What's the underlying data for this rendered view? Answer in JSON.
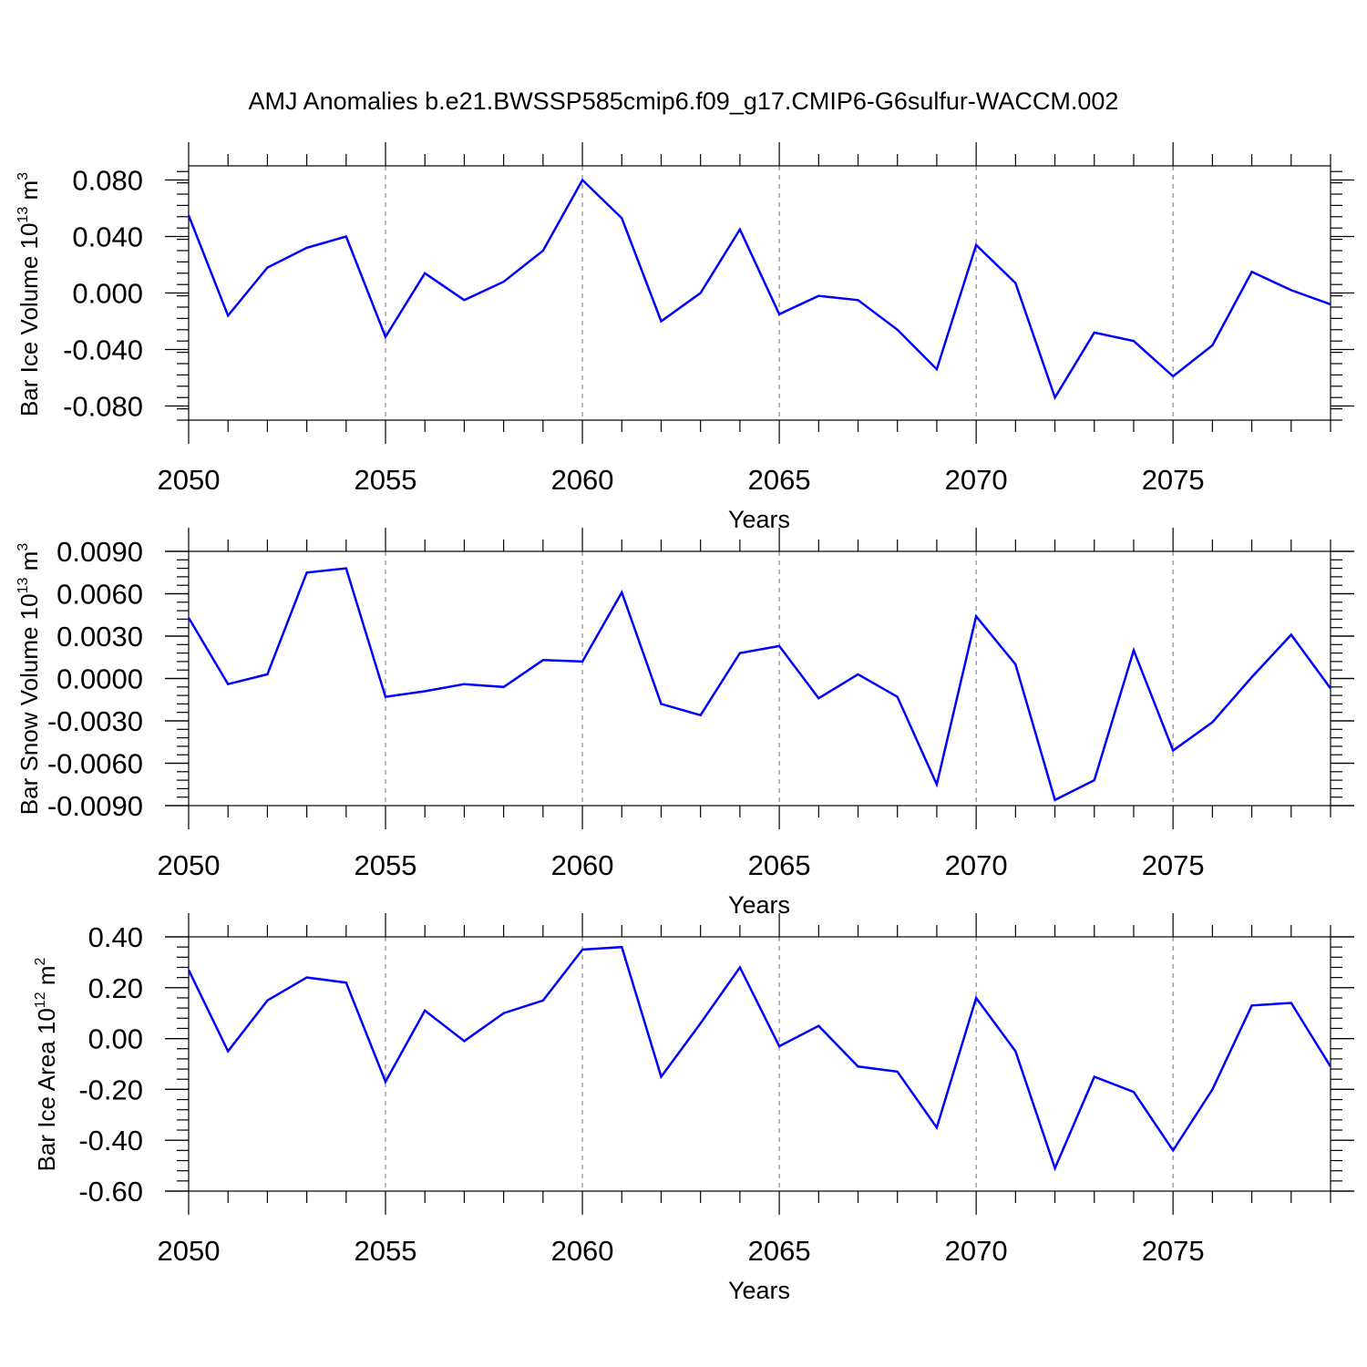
{
  "title": "AMJ Anomalies b.e21.BWSSP585cmip6.f09_g17.CMIP6-G6sulfur-WACCM.002",
  "chart_data": [
    {
      "type": "line",
      "ylabel": "Bar Ice Volume 10",
      "ylabel_sup": "13",
      "ylabel_unit": "m",
      "ylabel_unit_sup": "3",
      "xlabel": "Years",
      "xlim": [
        2050,
        2079
      ],
      "ylim": [
        -0.09,
        0.09
      ],
      "yticks": [
        -0.08,
        -0.04,
        0.0,
        0.04,
        0.08
      ],
      "ytick_labels": [
        "-0.080",
        "-0.040",
        "0.000",
        "0.040",
        "0.080"
      ],
      "xticks": [
        2050,
        2055,
        2060,
        2065,
        2070,
        2075
      ],
      "xtick_labels": [
        "2050",
        "2055",
        "2060",
        "2065",
        "2070",
        "2075"
      ],
      "grid": "vertical dashed at major x ticks",
      "line_color": "#0000ff",
      "x": [
        2050,
        2051,
        2052,
        2053,
        2054,
        2055,
        2056,
        2057,
        2058,
        2059,
        2060,
        2061,
        2062,
        2063,
        2064,
        2065,
        2066,
        2067,
        2068,
        2069,
        2070,
        2071,
        2072,
        2073,
        2074,
        2075,
        2076,
        2077,
        2078,
        2079
      ],
      "values": [
        0.055,
        -0.016,
        0.018,
        0.032,
        0.04,
        -0.031,
        0.014,
        -0.005,
        0.008,
        0.03,
        0.08,
        0.053,
        -0.02,
        0.0,
        0.045,
        -0.015,
        -0.002,
        -0.005,
        -0.026,
        -0.054,
        0.034,
        0.007,
        -0.074,
        -0.028,
        -0.034,
        -0.059,
        -0.037,
        0.015,
        0.002,
        -0.008
      ]
    },
    {
      "type": "line",
      "ylabel": "Bar Snow Volume 10",
      "ylabel_sup": "13",
      "ylabel_unit": "m",
      "ylabel_unit_sup": "3",
      "xlabel": "Years",
      "xlim": [
        2050,
        2079
      ],
      "ylim": [
        -0.009,
        0.009
      ],
      "yticks": [
        -0.009,
        -0.006,
        -0.003,
        0.0,
        0.003,
        0.006,
        0.009
      ],
      "ytick_labels": [
        "-0.0090",
        "-0.0060",
        "-0.0030",
        "0.0000",
        "0.0030",
        "0.0060",
        "0.0090"
      ],
      "xticks": [
        2050,
        2055,
        2060,
        2065,
        2070,
        2075
      ],
      "xtick_labels": [
        "2050",
        "2055",
        "2060",
        "2065",
        "2070",
        "2075"
      ],
      "grid": "vertical dashed at major x ticks",
      "line_color": "#0000ff",
      "x": [
        2050,
        2051,
        2052,
        2053,
        2054,
        2055,
        2056,
        2057,
        2058,
        2059,
        2060,
        2061,
        2062,
        2063,
        2064,
        2065,
        2066,
        2067,
        2068,
        2069,
        2070,
        2071,
        2072,
        2073,
        2074,
        2075,
        2076,
        2077,
        2078,
        2079
      ],
      "values": [
        0.0043,
        -0.0004,
        0.0003,
        0.0075,
        0.0078,
        -0.0013,
        -0.0009,
        -0.0004,
        -0.0006,
        0.0013,
        0.0012,
        0.0061,
        -0.0018,
        -0.0026,
        0.0018,
        0.0023,
        -0.0014,
        0.0003,
        -0.0013,
        -0.0075,
        0.0044,
        0.001,
        -0.0086,
        -0.0072,
        0.002,
        -0.0051,
        -0.0031,
        0.0001,
        0.0031,
        -0.0007
      ]
    },
    {
      "type": "line",
      "ylabel": "Bar Ice Area 10",
      "ylabel_sup": "12",
      "ylabel_unit": "m",
      "ylabel_unit_sup": "2",
      "xlabel": "Years",
      "xlim": [
        2050,
        2079
      ],
      "ylim": [
        -0.6,
        0.4
      ],
      "yticks": [
        -0.6,
        -0.4,
        -0.2,
        0.0,
        0.2,
        0.4
      ],
      "ytick_labels": [
        "-0.60",
        "-0.40",
        "-0.20",
        "0.00",
        "0.20",
        "0.40"
      ],
      "xticks": [
        2050,
        2055,
        2060,
        2065,
        2070,
        2075
      ],
      "xtick_labels": [
        "2050",
        "2055",
        "2060",
        "2065",
        "2070",
        "2075"
      ],
      "grid": "vertical dashed at major x ticks",
      "line_color": "#0000ff",
      "x": [
        2050,
        2051,
        2052,
        2053,
        2054,
        2055,
        2056,
        2057,
        2058,
        2059,
        2060,
        2061,
        2062,
        2063,
        2064,
        2065,
        2066,
        2067,
        2068,
        2069,
        2070,
        2071,
        2072,
        2073,
        2074,
        2075,
        2076,
        2077,
        2078,
        2079
      ],
      "values": [
        0.27,
        -0.05,
        0.15,
        0.24,
        0.22,
        -0.17,
        0.11,
        -0.01,
        0.1,
        0.15,
        0.35,
        0.36,
        -0.15,
        0.06,
        0.28,
        -0.03,
        0.05,
        -0.11,
        -0.13,
        -0.35,
        0.16,
        -0.05,
        -0.51,
        -0.15,
        -0.21,
        -0.44,
        -0.2,
        0.13,
        0.14,
        -0.11
      ]
    }
  ]
}
